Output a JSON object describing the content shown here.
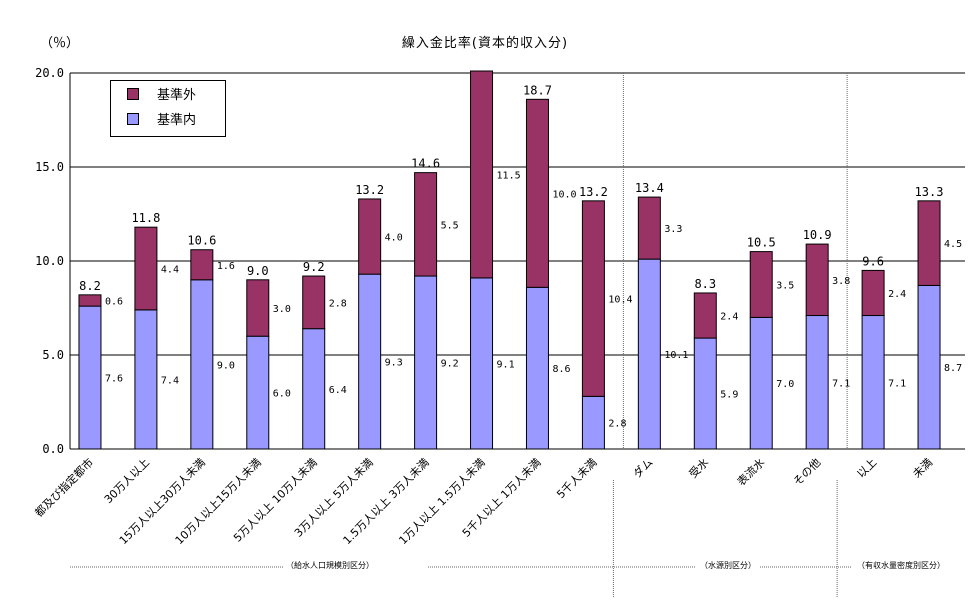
{
  "chart_data": {
    "type": "bar",
    "stacked": true,
    "title": "繰入金比率(資本的収入分)",
    "ylabel": "（％）",
    "ylim": [
      0,
      20
    ],
    "yticks": [
      "0.0",
      "5.0",
      "10.0",
      "15.0",
      "20.0"
    ],
    "grid": true,
    "legend_position": "top-left",
    "categories": [
      "都及び指定都市",
      "30万人以上",
      "15万人以上30万人未満",
      "10万人以上15万人未満",
      "5万人以上 10万人未満",
      "3万人以上 5万人未満",
      "1.5万人以上 3万人未満",
      "1万人以上 1.5万人未満",
      "5千人以上 1万人未満",
      "5千人未満",
      "ダム",
      "受水",
      "表流水",
      "その他",
      "以上",
      "未満"
    ],
    "series": [
      {
        "name": "基準内",
        "color": "#9999ff",
        "values": [
          7.6,
          7.4,
          9.0,
          6.0,
          6.4,
          9.3,
          9.2,
          9.1,
          8.6,
          2.8,
          10.1,
          5.9,
          7.0,
          7.1,
          7.1,
          8.7
        ]
      },
      {
        "name": "基準外",
        "color": "#993366",
        "values": [
          0.6,
          4.4,
          1.6,
          3.0,
          2.8,
          4.0,
          5.5,
          11.5,
          10.0,
          10.4,
          3.3,
          2.4,
          3.5,
          3.8,
          2.4,
          4.5
        ]
      }
    ],
    "value_labels": {
      "inner": [
        "7.6",
        "7.4",
        "9.0",
        "6.0",
        "6.4",
        "9.3",
        "9.2",
        "9.1",
        "8.6",
        "2.8",
        "10.1",
        "5.9",
        "7.0",
        "7.1",
        "7.1",
        "8.7"
      ],
      "outer": [
        "0.6",
        "4.4",
        "1.6",
        "3.0",
        "2.8",
        "4.0",
        "5.5",
        "11.5",
        "10.0",
        "10.4",
        "3.3",
        "2.4",
        "3.5",
        "3.8",
        "2.4",
        "4.5"
      ],
      "totals": [
        "8.2",
        "11.8",
        "10.6",
        "9.0",
        "9.2",
        "13.2",
        "14.6",
        "",
        "18.7",
        "13.2",
        "13.4",
        "8.3",
        "10.5",
        "10.9",
        "9.6",
        "13.3"
      ]
    },
    "groups": [
      {
        "label": "（給水人口規模別区分）"
      },
      {
        "label": "（水源別区分）"
      },
      {
        "label": "（有収水量密度別区分）"
      }
    ]
  }
}
